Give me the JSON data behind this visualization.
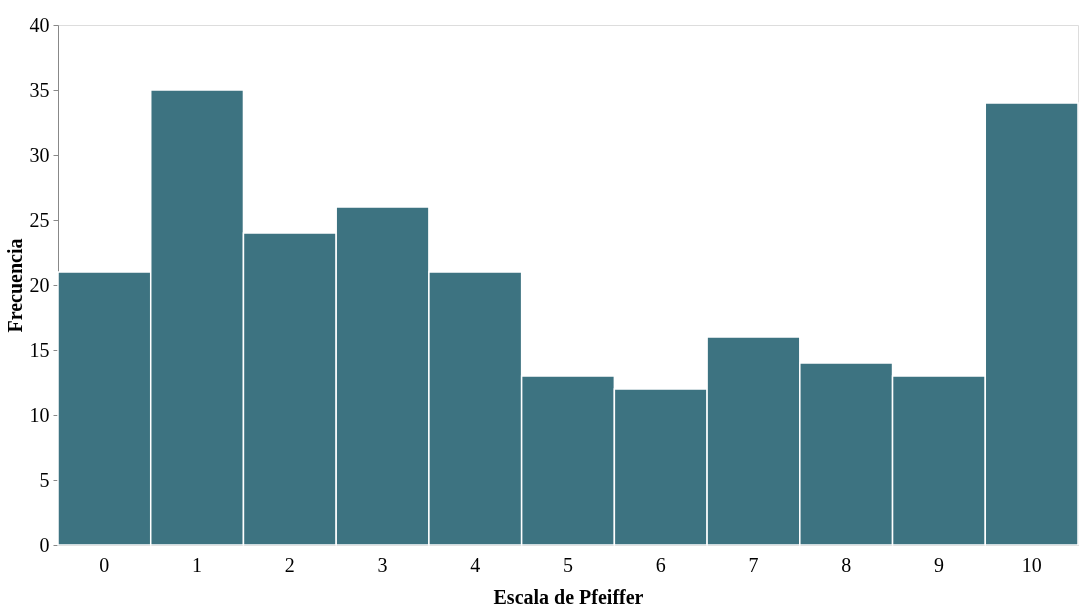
{
  "chart_data": {
    "type": "bar",
    "xlabel": "Escala de Pfeiffer",
    "ylabel": "Frecuencia",
    "categories": [
      "0",
      "1",
      "2",
      "3",
      "4",
      "5",
      "6",
      "7",
      "8",
      "9",
      "10"
    ],
    "values": [
      21,
      35,
      24,
      26,
      21,
      13,
      12,
      16,
      14,
      13,
      34
    ],
    "color": "#3d7381",
    "ylim": [
      0,
      40
    ],
    "yticks": [
      0,
      5,
      10,
      15,
      20,
      25,
      30,
      35,
      40
    ]
  }
}
